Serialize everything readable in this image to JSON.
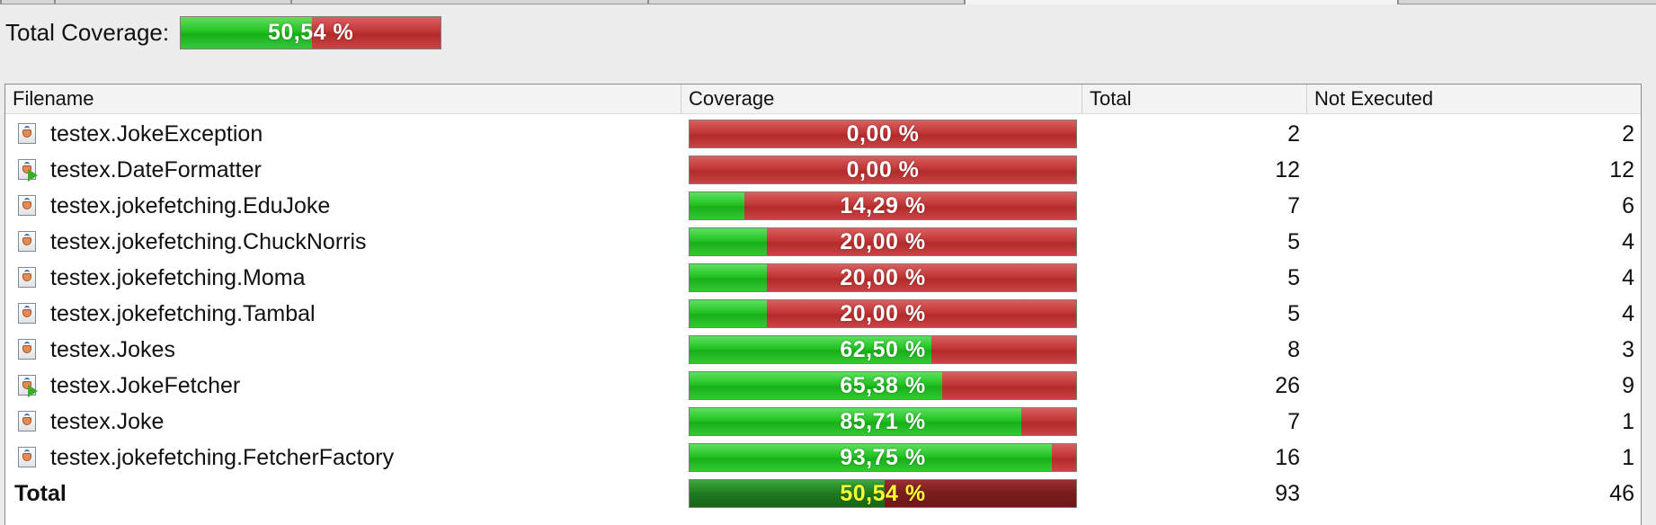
{
  "summary": {
    "label": "Total Coverage:",
    "coverage_text": "50,54 %",
    "coverage_fraction": 0.5054
  },
  "colors": {
    "covered": "#22c322",
    "not_covered": "#c23636",
    "total_text": "#ffff33"
  },
  "table": {
    "headers": [
      "Filename",
      "Coverage",
      "Total",
      "Not Executed"
    ],
    "rows": [
      {
        "name": "testex.JokeException",
        "icon": "class-file-icon",
        "coverage_text": "0,00 %",
        "coverage_fraction": 0.0,
        "total": "2",
        "not_executed": "2"
      },
      {
        "name": "testex.DateFormatter",
        "icon": "main-class-file-icon",
        "coverage_text": "0,00 %",
        "coverage_fraction": 0.0,
        "total": "12",
        "not_executed": "12"
      },
      {
        "name": "testex.jokefetching.EduJoke",
        "icon": "class-file-icon",
        "coverage_text": "14,29 %",
        "coverage_fraction": 0.1429,
        "total": "7",
        "not_executed": "6"
      },
      {
        "name": "testex.jokefetching.ChuckNorris",
        "icon": "class-file-icon",
        "coverage_text": "20,00 %",
        "coverage_fraction": 0.2,
        "total": "5",
        "not_executed": "4"
      },
      {
        "name": "testex.jokefetching.Moma",
        "icon": "class-file-icon",
        "coverage_text": "20,00 %",
        "coverage_fraction": 0.2,
        "total": "5",
        "not_executed": "4"
      },
      {
        "name": "testex.jokefetching.Tambal",
        "icon": "class-file-icon",
        "coverage_text": "20,00 %",
        "coverage_fraction": 0.2,
        "total": "5",
        "not_executed": "4"
      },
      {
        "name": "testex.Jokes",
        "icon": "class-file-icon",
        "coverage_text": "62,50 %",
        "coverage_fraction": 0.625,
        "total": "8",
        "not_executed": "3"
      },
      {
        "name": "testex.JokeFetcher",
        "icon": "main-class-file-icon",
        "coverage_text": "65,38 %",
        "coverage_fraction": 0.6538,
        "total": "26",
        "not_executed": "9"
      },
      {
        "name": "testex.Joke",
        "icon": "class-file-icon",
        "coverage_text": "85,71 %",
        "coverage_fraction": 0.8571,
        "total": "7",
        "not_executed": "1"
      },
      {
        "name": "testex.jokefetching.FetcherFactory",
        "icon": "class-file-icon",
        "coverage_text": "93,75 %",
        "coverage_fraction": 0.9375,
        "total": "16",
        "not_executed": "1"
      }
    ],
    "total_row": {
      "name": "Total",
      "coverage_text": "50,54 %",
      "coverage_fraction": 0.5054,
      "total": "93",
      "not_executed": "46"
    }
  }
}
